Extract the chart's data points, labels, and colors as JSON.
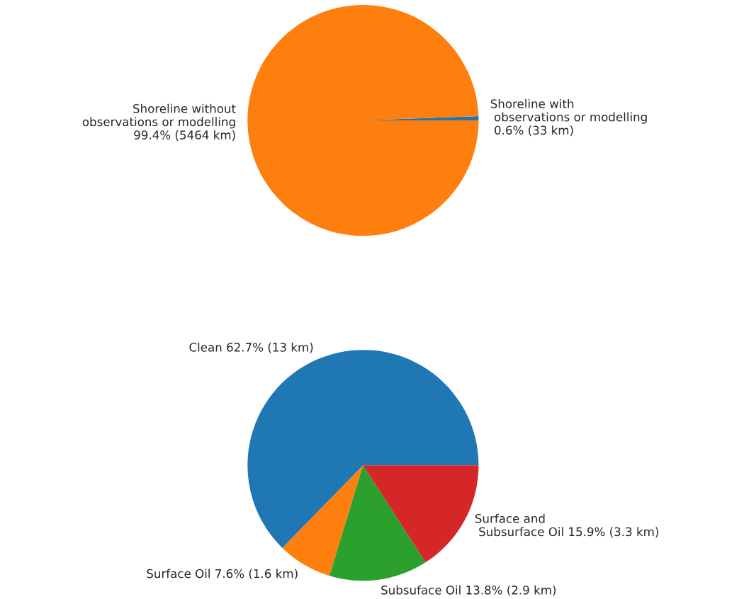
{
  "chart_data": [
    {
      "type": "pie",
      "categories": [
        "Shoreline with\n observations or modelling\n 0.6% (33 km)",
        "Shoreline without\nobservations or modelling\n99.4% (5464 km)"
      ],
      "values": [
        0.6,
        99.4
      ],
      "colors": [
        "#1f77b4",
        "#ff7f0e"
      ]
    },
    {
      "type": "pie",
      "categories": [
        "Clean 62.7% (13 km)",
        "Surface Oil 7.6% (1.6 km)",
        "Subsuface Oil 13.8% (2.9 km)",
        "Surface and\n Subsurface Oil 15.9% (3.3 km)"
      ],
      "values": [
        62.7,
        7.6,
        13.8,
        15.9
      ],
      "colors": [
        "#1f77b4",
        "#ff7f0e",
        "#2ca02c",
        "#d62728"
      ]
    }
  ]
}
